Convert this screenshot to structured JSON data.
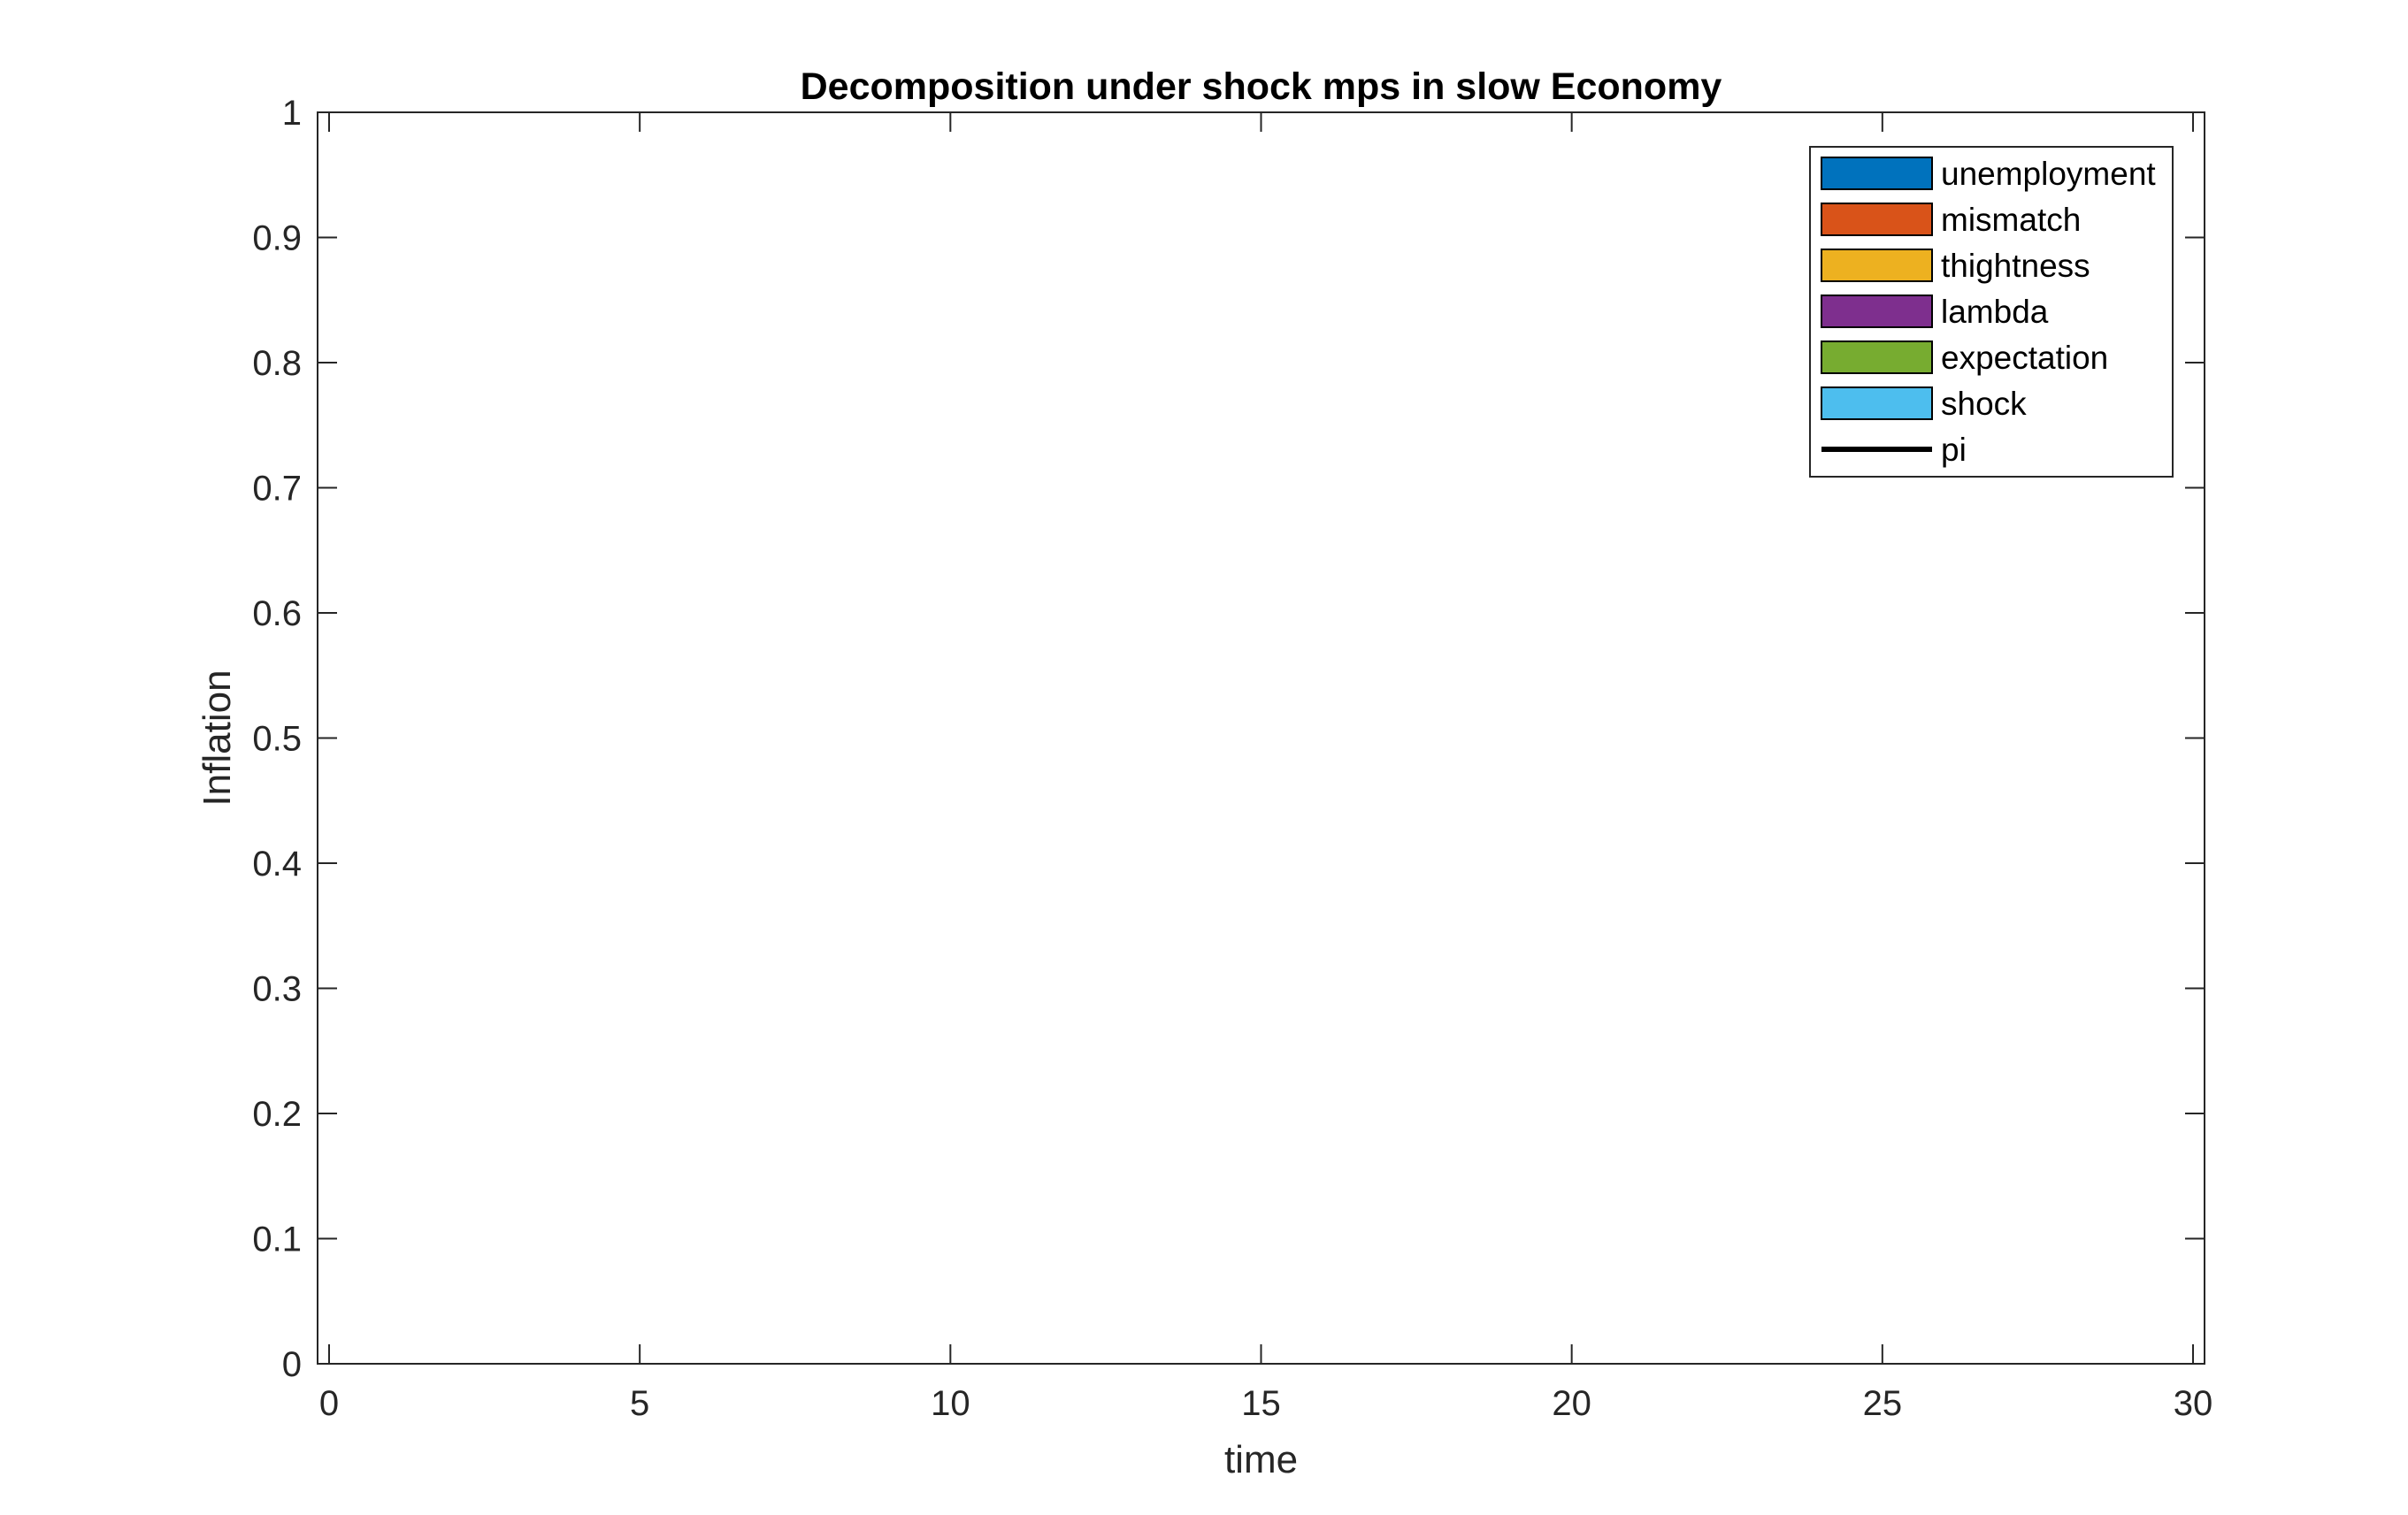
{
  "chart_data": {
    "type": "bar",
    "stacked": true,
    "title": "Decomposition under shock mps in slow Economy",
    "xlabel": "time",
    "ylabel": "Inflation",
    "xlim": [
      0,
      30
    ],
    "ylim": [
      0,
      1
    ],
    "x_ticks": [
      "0",
      "5",
      "10",
      "15",
      "20",
      "25",
      "30"
    ],
    "y_ticks": [
      "0",
      "0.1",
      "0.2",
      "0.3",
      "0.4",
      "0.5",
      "0.6",
      "0.7",
      "0.8",
      "0.9",
      "1"
    ],
    "grid": false,
    "legend_position": "top-right",
    "series": [
      {
        "name": "unemployment",
        "kind": "bar",
        "color": "#0072BD",
        "values": []
      },
      {
        "name": "mismatch",
        "kind": "bar",
        "color": "#D95319",
        "values": []
      },
      {
        "name": "thightness",
        "kind": "bar",
        "color": "#EDB120",
        "values": []
      },
      {
        "name": "lambda",
        "kind": "bar",
        "color": "#7E2F8E",
        "values": []
      },
      {
        "name": "expectation",
        "kind": "bar",
        "color": "#77AC30",
        "values": []
      },
      {
        "name": "shock",
        "kind": "bar",
        "color": "#4DBEEE",
        "values": []
      },
      {
        "name": "pi",
        "kind": "line",
        "color": "#000000",
        "values": []
      }
    ]
  }
}
